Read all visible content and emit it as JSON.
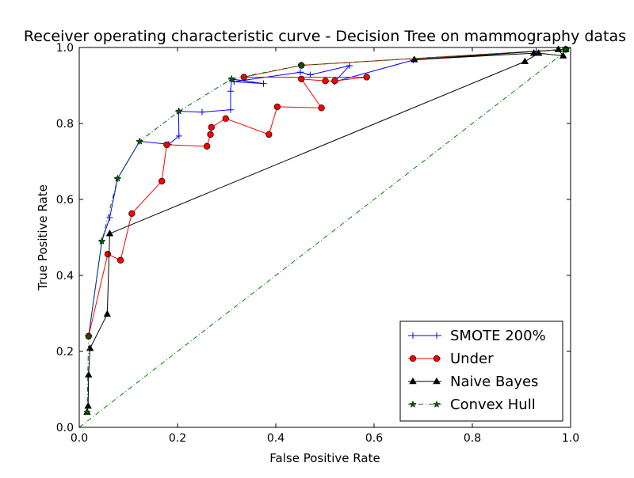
{
  "chart_data": {
    "type": "line",
    "title": "Receiver operating characteristic curve - Decision Tree on mammography datas",
    "xlabel": "False Positive Rate",
    "ylabel": "True Positive Rate",
    "xlim": [
      0.0,
      1.0
    ],
    "ylim": [
      0.0,
      1.0
    ],
    "xticks": [
      "0.0",
      "0.2",
      "0.4",
      "0.6",
      "0.8",
      "1.0"
    ],
    "yticks": [
      "0.0",
      "0.2",
      "0.4",
      "0.6",
      "0.8",
      "1.0"
    ],
    "grid": false,
    "legend_position": "bottom-right",
    "series": [
      {
        "name": "SMOTE 200%",
        "color": "#0000ff",
        "marker": "plus",
        "dash": "solid",
        "x": [
          0.019,
          0.046,
          0.062,
          0.078,
          0.123,
          0.182,
          0.203,
          0.202,
          0.25,
          0.308,
          0.308,
          0.31,
          0.375,
          0.315,
          0.45,
          0.47,
          0.55,
          0.52,
          0.68,
          0.93,
          0.99
        ],
        "y": [
          0.24,
          0.49,
          0.552,
          0.655,
          0.753,
          0.745,
          0.767,
          0.832,
          0.83,
          0.836,
          0.885,
          0.917,
          0.905,
          0.91,
          0.935,
          0.928,
          0.952,
          0.91,
          0.967,
          0.99,
          0.995
        ]
      },
      {
        "name": "Under",
        "color": "#ff0000",
        "marker": "circle",
        "dash": "solid",
        "x": [
          0.019,
          0.058,
          0.084,
          0.107,
          0.168,
          0.178,
          0.26,
          0.267,
          0.269,
          0.298,
          0.386,
          0.403,
          0.493,
          0.452,
          0.501,
          0.52,
          0.585,
          0.335,
          0.452,
          0.99
        ],
        "y": [
          0.24,
          0.456,
          0.44,
          0.563,
          0.648,
          0.744,
          0.74,
          0.771,
          0.79,
          0.813,
          0.771,
          0.844,
          0.841,
          0.917,
          0.912,
          0.912,
          0.922,
          0.922,
          0.953,
          0.995
        ]
      },
      {
        "name": "Naive Bayes",
        "color": "#000000",
        "marker": "triangle",
        "dash": "solid",
        "x": [
          0.016,
          0.018,
          0.019,
          0.022,
          0.057,
          0.062,
          0.907,
          0.935,
          0.985,
          0.975,
          0.99,
          0.682,
          0.925
        ],
        "y": [
          0.04,
          0.056,
          0.138,
          0.208,
          0.298,
          0.51,
          0.963,
          0.985,
          0.978,
          0.995,
          0.995,
          0.968,
          0.985
        ]
      },
      {
        "name": "Convex Hull",
        "color": "#006400",
        "marker": "star",
        "dash": "dashdot",
        "x": [
          0.016,
          0.019,
          0.046,
          0.078,
          0.123,
          0.203,
          0.31,
          0.452,
          0.99
        ],
        "y": [
          0.04,
          0.24,
          0.49,
          0.655,
          0.753,
          0.832,
          0.917,
          0.953,
          0.995
        ]
      }
    ],
    "reference_line": {
      "color": "#008000",
      "dash": "dashdot",
      "x": [
        0.0,
        1.0
      ],
      "y": [
        0.0,
        1.0
      ]
    }
  }
}
